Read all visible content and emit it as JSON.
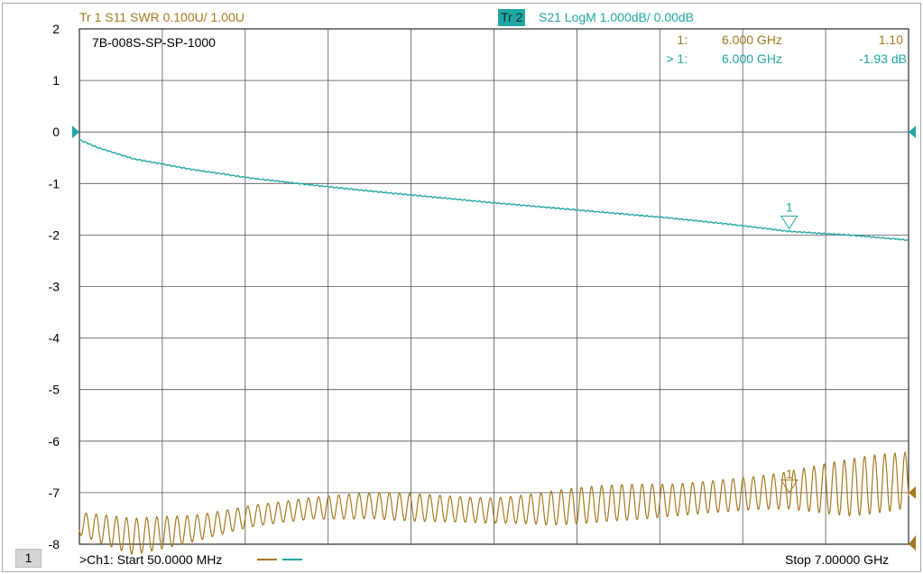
{
  "header": {
    "trace1": "Tr 1  S11 SWR 0.100U/  1.00U",
    "trace2_badge": "Tr 2",
    "trace2": "S21 LogM 1.000dB/  0.00dB"
  },
  "footer": {
    "channel_badge": "1",
    "start": ">Ch1:  Start  50.0000 MHz",
    "stop": "Stop  7.00000 GHz"
  },
  "markers": {
    "row1": {
      "label": "1:",
      "freq": "6.000  GHz",
      "value": "1.10"
    },
    "row2": {
      "label": "> 1:",
      "freq": "6.000  GHz",
      "value": "-1.93 dB"
    }
  },
  "colors": {
    "trace1": "#a57a20",
    "trace2": "#20a7a3",
    "grid": "#000000"
  },
  "chart_data": {
    "type": "line",
    "title": "7B-008S-SP-SP-1000",
    "xlabel": "",
    "ylabel": "",
    "xlim": [
      0.05,
      7.0
    ],
    "ylim": [
      -8.3,
      2
    ],
    "yticks": [
      2,
      1,
      0,
      -1,
      -2,
      -3,
      -4,
      -5,
      -6,
      -7,
      -8
    ],
    "grid": true,
    "series": [
      {
        "name": "S21",
        "x": [
          0.05,
          0.2,
          0.5,
          1.0,
          1.5,
          2.0,
          2.5,
          3.0,
          3.5,
          4.0,
          4.5,
          5.0,
          5.5,
          6.0,
          6.5,
          7.0
        ],
        "y": [
          -0.15,
          -0.3,
          -0.52,
          -0.73,
          -0.9,
          -1.03,
          -1.15,
          -1.26,
          -1.37,
          -1.47,
          -1.57,
          -1.67,
          -1.79,
          -1.93,
          -2.0,
          -2.1
        ]
      },
      {
        "name": "S11",
        "x": [
          0.05,
          0.5,
          1.0,
          1.5,
          2.0,
          2.5,
          3.0,
          3.5,
          4.0,
          4.5,
          5.0,
          5.5,
          6.0,
          6.5,
          7.0
        ],
        "y": [
          -7.6,
          -7.85,
          -7.7,
          -7.45,
          -7.3,
          -7.25,
          -7.3,
          -7.35,
          -7.3,
          -7.2,
          -7.15,
          -7.05,
          -6.95,
          -6.9,
          -6.75
        ],
        "ripple_amplitude": [
          0.25,
          0.35,
          0.3,
          0.3,
          0.25,
          0.25,
          0.3,
          0.35,
          0.4,
          0.35,
          0.35,
          0.45,
          0.45,
          0.55,
          0.6
        ]
      }
    ]
  }
}
